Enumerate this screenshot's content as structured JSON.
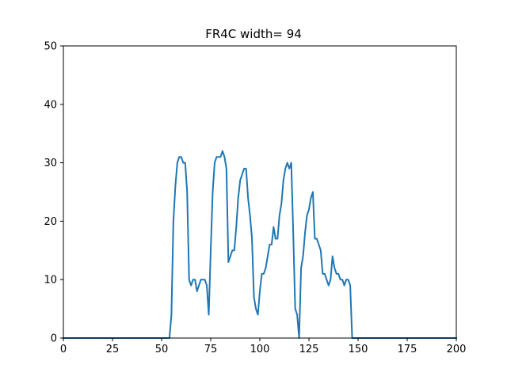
{
  "chart_data": {
    "type": "line",
    "title": "FR4C width= 94",
    "xlabel": "",
    "ylabel": "",
    "xlim": [
      0,
      200
    ],
    "ylim": [
      0,
      50
    ],
    "xticks": [
      0,
      25,
      50,
      75,
      100,
      125,
      150,
      175,
      200
    ],
    "yticks": [
      0,
      10,
      20,
      30,
      40,
      50
    ],
    "grid": false,
    "line_color": "#1f77b4",
    "series": [
      {
        "x": [
          0,
          54,
          55,
          56,
          57,
          58,
          59,
          60,
          61,
          62,
          63,
          64,
          65,
          66,
          67,
          68,
          69,
          70,
          71,
          72,
          73,
          74,
          75,
          76,
          77,
          78,
          79,
          80,
          81,
          82,
          83,
          84,
          85,
          86,
          87,
          88,
          89,
          90,
          91,
          92,
          93,
          94,
          95,
          96,
          97,
          98,
          99,
          100,
          101,
          102,
          103,
          104,
          105,
          106,
          107,
          108,
          109,
          110,
          111,
          112,
          113,
          114,
          115,
          116,
          117,
          118,
          119,
          120,
          121,
          122,
          123,
          124,
          125,
          126,
          127,
          128,
          129,
          130,
          131,
          132,
          133,
          134,
          135,
          136,
          137,
          138,
          139,
          140,
          141,
          142,
          143,
          144,
          145,
          146,
          147,
          148,
          200
        ],
        "y": [
          0,
          0,
          4,
          20,
          26,
          30,
          31,
          31,
          30,
          30,
          25,
          10,
          9,
          10,
          10,
          8,
          9,
          10,
          10,
          10,
          9,
          4,
          15,
          25,
          30,
          31,
          31,
          31,
          32,
          31,
          29,
          13,
          14,
          15,
          15,
          19,
          24,
          27,
          28,
          29,
          29,
          24,
          21,
          17,
          7,
          5,
          4,
          8,
          11,
          11,
          12,
          14,
          16,
          16,
          19,
          17,
          17,
          21,
          23,
          27,
          29,
          30,
          29,
          30,
          18,
          5,
          4,
          0,
          12,
          14,
          18,
          21,
          22,
          24,
          25,
          17,
          17,
          16,
          15,
          11,
          11,
          10,
          9,
          10,
          14,
          12,
          11,
          11,
          10,
          10,
          9,
          10,
          10,
          9,
          0,
          0,
          0
        ]
      }
    ]
  }
}
